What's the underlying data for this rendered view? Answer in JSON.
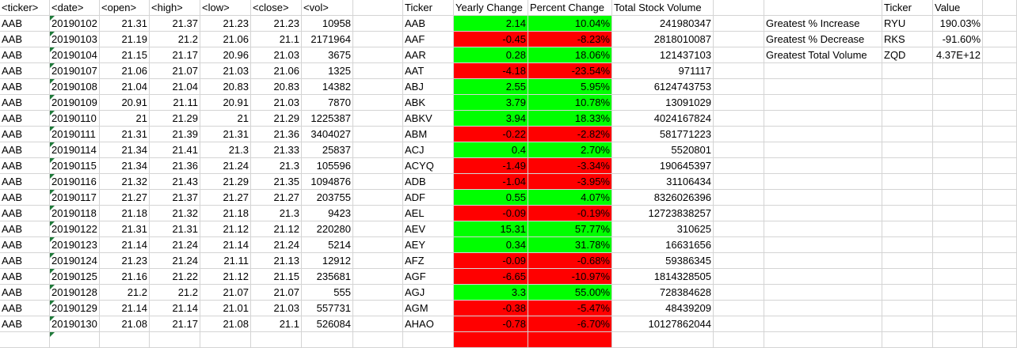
{
  "headers": {
    "raw": [
      "<ticker>",
      "<date>",
      "<open>",
      "<high>",
      "<low>",
      "<close>",
      "<vol>"
    ],
    "summary": [
      "Ticker",
      "Yearly Change",
      "Percent Change",
      "Total Stock Volume"
    ],
    "greatest": [
      "Ticker",
      "Value"
    ]
  },
  "raw_rows": [
    [
      "AAB",
      "20190102",
      "21.31",
      "21.37",
      "21.23",
      "21.23",
      "10958"
    ],
    [
      "AAB",
      "20190103",
      "21.19",
      "21.2",
      "21.06",
      "21.1",
      "2171964"
    ],
    [
      "AAB",
      "20190104",
      "21.15",
      "21.17",
      "20.96",
      "21.03",
      "3675"
    ],
    [
      "AAB",
      "20190107",
      "21.06",
      "21.07",
      "21.03",
      "21.06",
      "1325"
    ],
    [
      "AAB",
      "20190108",
      "21.04",
      "21.04",
      "20.83",
      "20.83",
      "14382"
    ],
    [
      "AAB",
      "20190109",
      "20.91",
      "21.11",
      "20.91",
      "21.03",
      "7870"
    ],
    [
      "AAB",
      "20190110",
      "21",
      "21.29",
      "21",
      "21.29",
      "1225387"
    ],
    [
      "AAB",
      "20190111",
      "21.31",
      "21.39",
      "21.31",
      "21.36",
      "3404027"
    ],
    [
      "AAB",
      "20190114",
      "21.34",
      "21.41",
      "21.3",
      "21.33",
      "25837"
    ],
    [
      "AAB",
      "20190115",
      "21.34",
      "21.36",
      "21.24",
      "21.3",
      "105596"
    ],
    [
      "AAB",
      "20190116",
      "21.32",
      "21.43",
      "21.29",
      "21.35",
      "1094876"
    ],
    [
      "AAB",
      "20190117",
      "21.27",
      "21.37",
      "21.27",
      "21.27",
      "203755"
    ],
    [
      "AAB",
      "20190118",
      "21.18",
      "21.32",
      "21.18",
      "21.3",
      "9423"
    ],
    [
      "AAB",
      "20190122",
      "21.31",
      "21.31",
      "21.12",
      "21.12",
      "220280"
    ],
    [
      "AAB",
      "20190123",
      "21.14",
      "21.24",
      "21.14",
      "21.24",
      "5214"
    ],
    [
      "AAB",
      "20190124",
      "21.23",
      "21.24",
      "21.11",
      "21.13",
      "12912"
    ],
    [
      "AAB",
      "20190125",
      "21.16",
      "21.22",
      "21.12",
      "21.15",
      "235681"
    ],
    [
      "AAB",
      "20190128",
      "21.2",
      "21.2",
      "21.07",
      "21.07",
      "555"
    ],
    [
      "AAB",
      "20190129",
      "21.14",
      "21.14",
      "21.01",
      "21.03",
      "557731"
    ],
    [
      "AAB",
      "20190130",
      "21.08",
      "21.17",
      "21.08",
      "21.1",
      "526084"
    ]
  ],
  "summary_rows": [
    {
      "ticker": "AAB",
      "change": "2.14",
      "percent": "10.04%",
      "volume": "241980347",
      "status": "pos"
    },
    {
      "ticker": "AAF",
      "change": "-0.45",
      "percent": "-8.23%",
      "volume": "2818010087",
      "status": "neg"
    },
    {
      "ticker": "AAR",
      "change": "0.28",
      "percent": "18.06%",
      "volume": "121437103",
      "status": "pos"
    },
    {
      "ticker": "AAT",
      "change": "-4.18",
      "percent": "-23.54%",
      "volume": "971117",
      "status": "neg"
    },
    {
      "ticker": "ABJ",
      "change": "2.55",
      "percent": "5.95%",
      "volume": "6124743753",
      "status": "pos"
    },
    {
      "ticker": "ABK",
      "change": "3.79",
      "percent": "10.78%",
      "volume": "13091029",
      "status": "pos"
    },
    {
      "ticker": "ABKV",
      "change": "3.94",
      "percent": "18.33%",
      "volume": "4024167824",
      "status": "pos"
    },
    {
      "ticker": "ABM",
      "change": "-0.22",
      "percent": "-2.82%",
      "volume": "581771223",
      "status": "neg"
    },
    {
      "ticker": "ACJ",
      "change": "0.4",
      "percent": "2.70%",
      "volume": "5520801",
      "status": "pos"
    },
    {
      "ticker": "ACYQ",
      "change": "-1.49",
      "percent": "-3.34%",
      "volume": "190645397",
      "status": "neg"
    },
    {
      "ticker": "ADB",
      "change": "-1.04",
      "percent": "-3.95%",
      "volume": "31106434",
      "status": "neg"
    },
    {
      "ticker": "ADF",
      "change": "0.55",
      "percent": "4.07%",
      "volume": "8326026396",
      "status": "pos"
    },
    {
      "ticker": "AEL",
      "change": "-0.09",
      "percent": "-0.19%",
      "volume": "12723838257",
      "status": "neg"
    },
    {
      "ticker": "AEV",
      "change": "15.31",
      "percent": "57.77%",
      "volume": "310625",
      "status": "pos"
    },
    {
      "ticker": "AEY",
      "change": "0.34",
      "percent": "31.78%",
      "volume": "16631656",
      "status": "pos"
    },
    {
      "ticker": "AFZ",
      "change": "-0.09",
      "percent": "-0.68%",
      "volume": "59386345",
      "status": "neg"
    },
    {
      "ticker": "AGF",
      "change": "-6.65",
      "percent": "-10.97%",
      "volume": "1814328505",
      "status": "neg"
    },
    {
      "ticker": "AGJ",
      "change": "3.3",
      "percent": "55.00%",
      "volume": "728384628",
      "status": "pos"
    },
    {
      "ticker": "AGM",
      "change": "-0.38",
      "percent": "-5.47%",
      "volume": "48439209",
      "status": "neg"
    },
    {
      "ticker": "AHAO",
      "change": "-0.78",
      "percent": "-6.70%",
      "volume": "10127862044",
      "status": "neg"
    }
  ],
  "greatest_rows": [
    {
      "label": "Greatest % Increase",
      "ticker": "RYU",
      "value": "190.03%"
    },
    {
      "label": "Greatest % Decrease",
      "ticker": "RKS",
      "value": "-91.60%"
    },
    {
      "label": "Greatest Total Volume",
      "ticker": "ZQD",
      "value": "4.37E+12"
    }
  ],
  "colors": {
    "positive": "#00ff00",
    "negative": "#ff0000",
    "gridline": "#d4d4d4",
    "error_flag": "#1f7a3a"
  }
}
